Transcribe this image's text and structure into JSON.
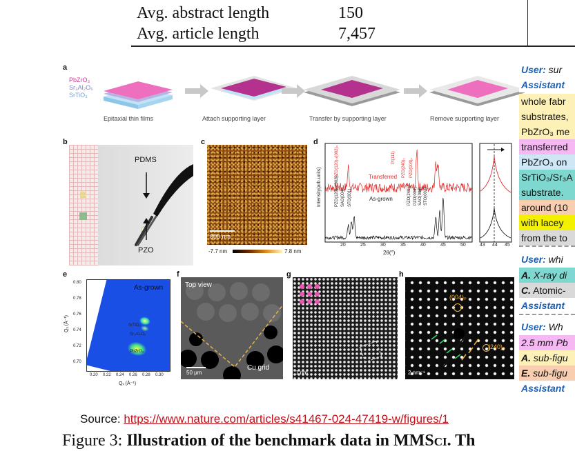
{
  "table": {
    "rows": [
      {
        "label": "Avg. abstract length",
        "value": "150"
      },
      {
        "label": "Avg. article length",
        "value": "7,457"
      }
    ]
  },
  "panels": {
    "a": {
      "label": "a",
      "layers": [
        "PbZrO₃",
        "Sr₃Al₂O₆",
        "SrTiO₃"
      ],
      "steps": [
        "Epitaxial thin films",
        "Attach supporting layer",
        "Transfer by supporting layer",
        "Remove supporting layer"
      ]
    },
    "b": {
      "label": "b",
      "top": "PDMS",
      "bottom": "PZO"
    },
    "c": {
      "label": "c",
      "scale": "800 nm",
      "min": "-7.7 nm",
      "max": "7.8 nm"
    },
    "d": {
      "label": "d",
      "ylabel": "Intensity(arb.units)",
      "xlabel": "2θ(°)",
      "series_transferred": "Transferred",
      "series_asgrown": "As-grown",
      "xticks": [
        "20",
        "25",
        "30",
        "35",
        "40",
        "45",
        "50"
      ],
      "inset_ticks": [
        "43",
        "44",
        "45"
      ],
      "peaks_top": [
        "PZO(120)₀/(002)ₚ",
        "Pt(111)",
        "PZO(240)₀",
        "PZO(004)ₚ"
      ],
      "peaks_bottom": [
        "PZO(120)₀/(002)ₚ",
        "SAO(004)",
        "STO(001)",
        "PZO(240)₀",
        "PZO(004)ₚ",
        "SAO(008)",
        "STO(002)"
      ]
    },
    "e": {
      "label": "e",
      "title": "As-grown",
      "ylabel": "Qᵧ (Å⁻¹)",
      "xlabel": "Qₓ (Å⁻¹)",
      "xticks": [
        "0.20",
        "0.22",
        "0.24",
        "0.26",
        "0.28",
        "0.30"
      ],
      "yticks": [
        "0.80",
        "0.78",
        "0.76",
        "0.74",
        "0.72",
        "0.70"
      ],
      "labels": [
        "SrTiO₃",
        "Sr₃Al₂O₆",
        "PbZrO₃"
      ]
    },
    "f": {
      "label": "f",
      "title": "Top view",
      "grid": "Cu grid",
      "scale": "50 μm"
    },
    "g": {
      "label": "g",
      "scale": "1 nm"
    },
    "h": {
      "label": "h",
      "spot1": "(004)ₚ",
      "spot2": "(240)₀",
      "scale": "2 nm⁻¹"
    }
  },
  "chat": {
    "lines": [
      {
        "segments": [
          {
            "text": "User:",
            "style": "blue"
          },
          {
            "text": " sur",
            "style": "italic"
          }
        ],
        "bg": "#ffffff"
      },
      {
        "segments": [
          {
            "text": "Assistant",
            "style": "blue"
          }
        ],
        "bg": "#ffffff"
      },
      {
        "segments": [
          {
            "text": "whole fabr",
            "style": "plain"
          }
        ],
        "bg": "#fdf1b8"
      },
      {
        "segments": [
          {
            "text": "substrates,",
            "style": "plain"
          }
        ],
        "bg": "#fdf1b8"
      },
      {
        "segments": [
          {
            "text": "PbZrO₃ me",
            "style": "plain"
          }
        ],
        "bg": "#fdf1b8"
      },
      {
        "segments": [
          {
            "text": "transferred",
            "style": "plain"
          }
        ],
        "bg": "#f5b8f2"
      },
      {
        "segments": [
          {
            "text": "PbZrO₃ on",
            "style": "plain"
          }
        ],
        "bg": "#cfe6f7"
      },
      {
        "segments": [
          {
            "text": "SrTiO₃/Sr₃A",
            "style": "plain"
          }
        ],
        "bg": "#7fd8cf"
      },
      {
        "segments": [
          {
            "text": "substrate.",
            "style": "plain"
          }
        ],
        "bg": "#7fd8cf"
      },
      {
        "segments": [
          {
            "text": "around (10",
            "style": "plain"
          }
        ],
        "bg": "#f8cdb0"
      },
      {
        "segments": [
          {
            "text": "with lacey",
            "style": "plain"
          }
        ],
        "bg": "#f3f000"
      },
      {
        "segments": [
          {
            "text": "from the to",
            "style": "plain"
          }
        ],
        "bg": "#d9d9d9"
      },
      {
        "segments": [
          {
            "text": "User:",
            "style": "blue"
          },
          {
            "text": " whi",
            "style": "italic"
          }
        ],
        "bg": "#ffffff"
      },
      {
        "segments": [
          {
            "text": "A.",
            "style": "bold-italic"
          },
          {
            "text": " X-ray di",
            "style": "italic"
          }
        ],
        "bg": "#7fd8cf"
      },
      {
        "segments": [
          {
            "text": "C.",
            "style": "bold-italic"
          },
          {
            "text": " Atomic-",
            "style": "plain"
          }
        ],
        "bg": "#d9d9d9"
      },
      {
        "segments": [
          {
            "text": "Assistant",
            "style": "blue"
          }
        ],
        "bg": "#ffffff"
      },
      {
        "segments": [
          {
            "text": "User:",
            "style": "blue"
          },
          {
            "text": " Wh",
            "style": "italic"
          }
        ],
        "bg": "#ffffff"
      },
      {
        "segments": [
          {
            "text": "2.5 mm Pb",
            "style": "italic"
          }
        ],
        "bg": "#f5b8f2"
      },
      {
        "segments": [
          {
            "text": "A.",
            "style": "bold-italic"
          },
          {
            "text": " sub-figu",
            "style": "italic"
          }
        ],
        "bg": "#fdf1b8"
      },
      {
        "segments": [
          {
            "text": "E.",
            "style": "bold-italic"
          },
          {
            "text": " sub-figu",
            "style": "italic"
          }
        ],
        "bg": "#f8cdb0"
      },
      {
        "segments": [
          {
            "text": "Assistant",
            "style": "blue"
          }
        ],
        "bg": "#ffffff"
      }
    ]
  },
  "source": {
    "prefix": "Source: ",
    "url": "https://www.nature.com/articles/s41467-024-47419-w/figures/1"
  },
  "caption": {
    "prefix": "Figure 3: ",
    "bold": "Illustration of the benchmark data in MMS",
    "smallcaps": "ci",
    "tail": ". Th"
  }
}
